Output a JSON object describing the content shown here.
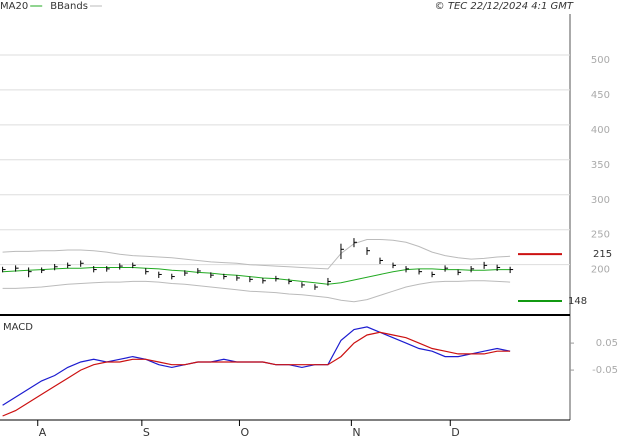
{
  "chart_data": {
    "type": "ohlc",
    "source": "© TEC 22/12/2024 4:1 GMT",
    "panel_title": "MACD",
    "x": [
      0,
      1,
      2,
      3,
      4,
      5,
      6,
      7,
      8,
      9,
      10,
      11,
      12,
      13,
      14,
      15,
      16,
      17,
      18,
      19,
      20,
      21,
      22,
      23,
      24,
      25,
      26,
      27,
      28,
      29,
      30,
      31,
      32,
      33,
      34,
      35,
      36,
      37,
      38,
      39
    ],
    "xlim": [
      -0.2,
      43.6
    ],
    "xticks": [
      {
        "value": 2.7,
        "label": "A"
      },
      {
        "value": 10.7,
        "label": "S"
      },
      {
        "value": 18.2,
        "label": "O"
      },
      {
        "value": 26.8,
        "label": "N"
      },
      {
        "value": 34.4,
        "label": "D"
      }
    ],
    "high": [
      197,
      199,
      196,
      196,
      201,
      203,
      206,
      198,
      198,
      202,
      203,
      195,
      190,
      187,
      192,
      195,
      189,
      187,
      185,
      183,
      181,
      184,
      180,
      175,
      172,
      181,
      230,
      238,
      225,
      210,
      203,
      198,
      194,
      190,
      199,
      193,
      198,
      204,
      200,
      197
    ],
    "low": [
      189,
      190,
      182,
      188,
      192,
      195,
      197,
      189,
      190,
      193,
      195,
      186,
      181,
      179,
      184,
      187,
      181,
      179,
      177,
      175,
      173,
      176,
      172,
      167,
      164,
      170,
      208,
      225,
      214,
      201,
      195,
      189,
      186,
      182,
      190,
      185,
      189,
      194,
      191,
      188
    ],
    "close": [
      193,
      195,
      190,
      192,
      197,
      199,
      202,
      193,
      194,
      198,
      199,
      190,
      186,
      183,
      188,
      191,
      185,
      183,
      181,
      179,
      177,
      180,
      176,
      171,
      168,
      176,
      222,
      232,
      220,
      206,
      199,
      194,
      190,
      186,
      195,
      189,
      194,
      199,
      196,
      193
    ],
    "series": [
      {
        "name": "MA20",
        "color": "#22aa22",
        "values": [
          190,
          191,
          192,
          193,
          194,
          195,
          195,
          196,
          196,
          196,
          196,
          195,
          194,
          192,
          191,
          189,
          188,
          186,
          185,
          183,
          181,
          180,
          178,
          176,
          174,
          172,
          174,
          178,
          182,
          186,
          190,
          193,
          194,
          194,
          193,
          193,
          192,
          192,
          193,
          193
        ]
      },
      {
        "name": "BBands",
        "color": "#bbbbbb",
        "values": [
          218,
          219,
          219,
          220,
          220,
          221,
          221,
          220,
          218,
          215,
          213,
          212,
          211,
          210,
          208,
          206,
          204,
          203,
          202,
          200,
          199,
          198,
          197,
          196,
          195,
          194,
          216,
          230,
          236,
          236,
          235,
          232,
          226,
          218,
          213,
          210,
          208,
          209,
          211,
          212
        ],
        "lower": [
          166,
          166,
          167,
          168,
          170,
          172,
          173,
          174,
          175,
          175,
          176,
          176,
          175,
          173,
          172,
          170,
          168,
          166,
          164,
          162,
          161,
          160,
          158,
          157,
          155,
          153,
          149,
          147,
          150,
          156,
          162,
          168,
          172,
          175,
          176,
          176,
          177,
          177,
          176,
          175
        ]
      },
      {
        "color": "#1c1cd0",
        "axis": "y2",
        "values": [
          -0.18,
          -0.15,
          -0.12,
          -0.09,
          -0.07,
          -0.04,
          -0.02,
          -0.01,
          -0.02,
          -0.01,
          0.0,
          -0.01,
          -0.03,
          -0.04,
          -0.03,
          -0.02,
          -0.02,
          -0.01,
          -0.02,
          -0.02,
          -0.02,
          -0.03,
          -0.03,
          -0.04,
          -0.03,
          -0.03,
          0.06,
          0.1,
          0.11,
          0.09,
          0.07,
          0.05,
          0.03,
          0.02,
          0.0,
          0.0,
          0.01,
          0.02,
          0.03,
          0.02
        ]
      },
      {
        "color": "#cc1111",
        "axis": "y2",
        "values": [
          -0.22,
          -0.2,
          -0.17,
          -0.14,
          -0.11,
          -0.08,
          -0.05,
          -0.03,
          -0.02,
          -0.02,
          -0.01,
          -0.01,
          -0.02,
          -0.03,
          -0.03,
          -0.02,
          -0.02,
          -0.02,
          -0.02,
          -0.02,
          -0.02,
          -0.03,
          -0.03,
          -0.03,
          -0.03,
          -0.03,
          0.0,
          0.05,
          0.08,
          0.09,
          0.08,
          0.07,
          0.05,
          0.03,
          0.02,
          0.01,
          0.01,
          0.01,
          0.02,
          0.02
        ]
      }
    ],
    "levels": [
      {
        "value": 215,
        "color": "#cc1111"
      },
      {
        "value": 148,
        "color": "#119911"
      }
    ],
    "ylim": [
      128,
      550
    ],
    "yticks": [
      200,
      250,
      300,
      350,
      400,
      450,
      500
    ],
    "y2lim": [
      -0.235,
      0.143
    ],
    "y2ticks": [
      0.05,
      -0.05
    ],
    "grid": true
  }
}
